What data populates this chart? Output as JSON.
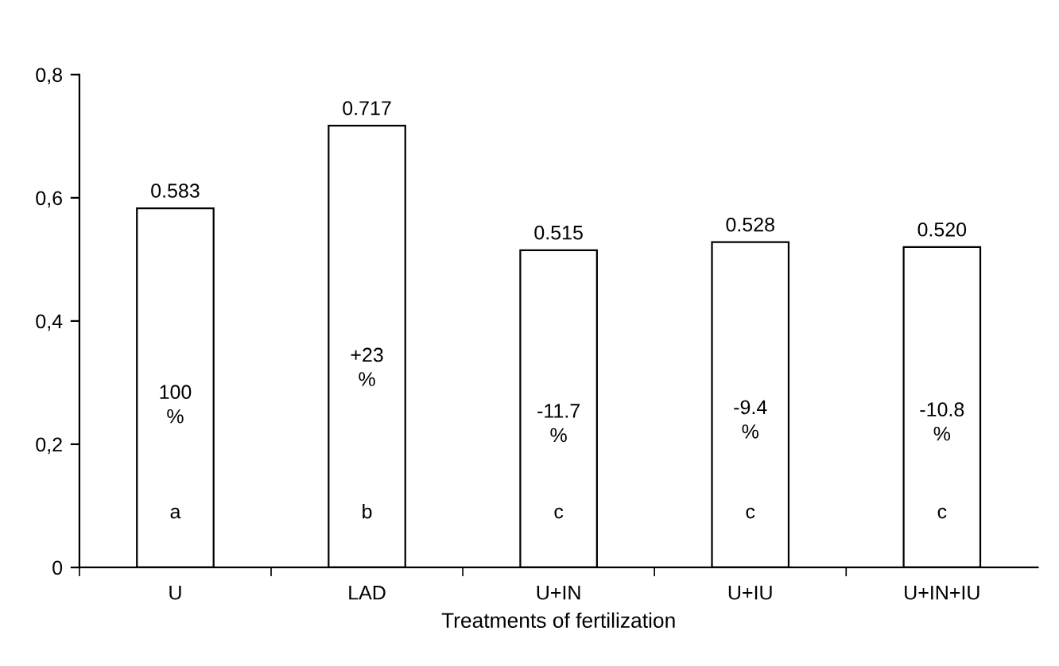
{
  "chart_data": {
    "type": "bar",
    "xlabel": "Treatments of fertilization",
    "categories": [
      "U",
      "LAD",
      "U+IN",
      "U+IU",
      "U+IN+IU"
    ],
    "values": [
      0.583,
      0.717,
      0.515,
      0.528,
      0.52
    ],
    "value_labels": [
      "0.583",
      "0.717",
      "0.515",
      "0.528",
      "0.520"
    ],
    "color": "#ffffff",
    "ylim": [
      0,
      0.8
    ],
    "yticks": [
      0,
      {
        "value": 0.2,
        "label": "0,2"
      },
      {
        "value": 0.4,
        "label": "0,4"
      },
      {
        "value": 0.6,
        "label": "0,6"
      },
      {
        "value": 0.8,
        "label": "0,8"
      }
    ],
    "grid": false,
    "legend": false,
    "annotations": [
      "100\n%",
      "+23\n%",
      "-11.7\n%",
      "-9.4\n%",
      "-10.8\n%",
      "a",
      "b",
      "c",
      "c",
      "c"
    ]
  }
}
